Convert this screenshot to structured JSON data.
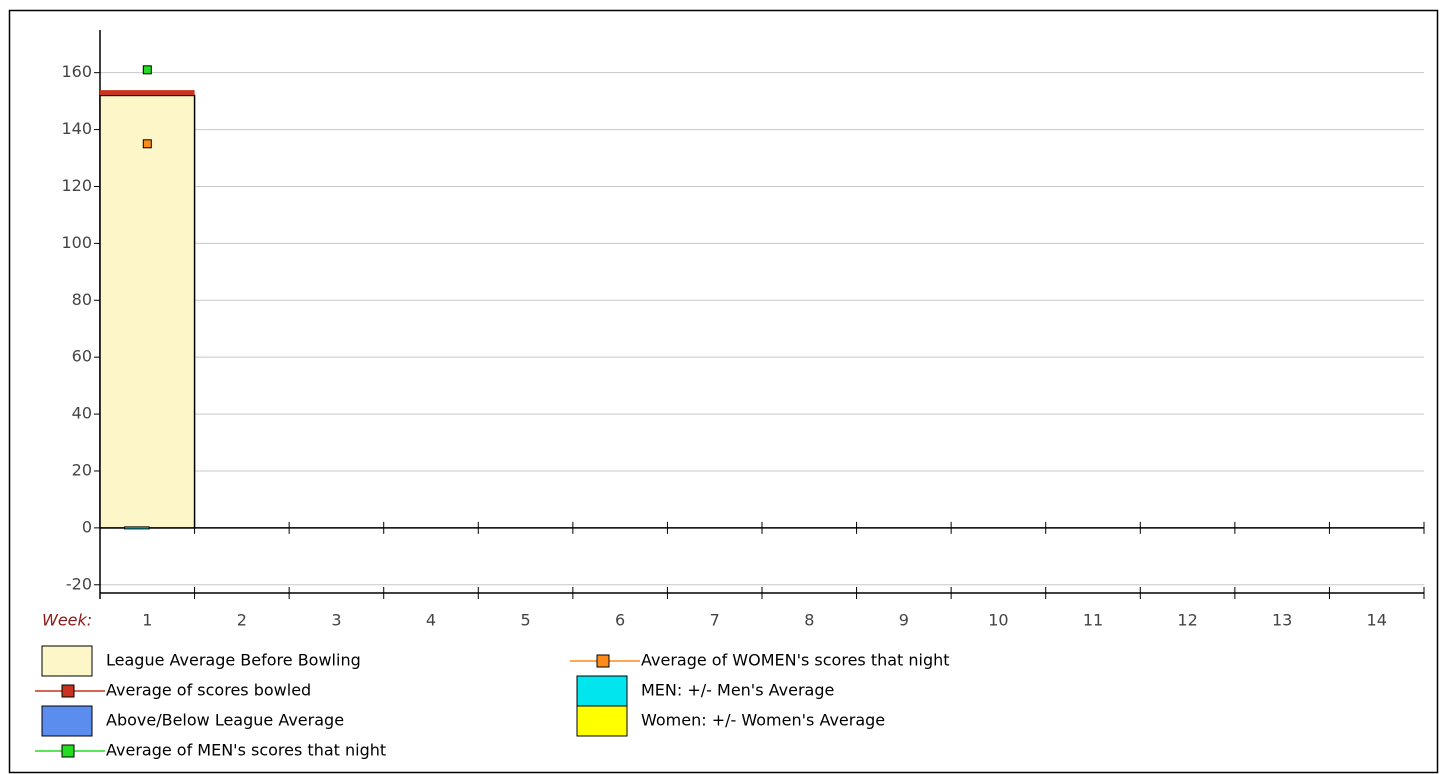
{
  "chart_data": {
    "type": "bar",
    "x_label": "Week:",
    "categories": [
      "1",
      "2",
      "3",
      "4",
      "5",
      "6",
      "7",
      "8",
      "9",
      "10",
      "11",
      "12",
      "13",
      "14"
    ],
    "ylim": [
      -25,
      175
    ],
    "yticks": [
      -20,
      0,
      20,
      40,
      60,
      80,
      100,
      120,
      140,
      160
    ],
    "grid": true,
    "series": [
      {
        "name": "League Average Before Bowling",
        "kind": "bar",
        "color": "#fdf6c8",
        "values": [
          152,
          null,
          null,
          null,
          null,
          null,
          null,
          null,
          null,
          null,
          null,
          null,
          null,
          null
        ]
      },
      {
        "name": "Average of scores bowled",
        "kind": "level",
        "color": "#c8321e",
        "values": [
          153,
          null,
          null,
          null,
          null,
          null,
          null,
          null,
          null,
          null,
          null,
          null,
          null,
          null
        ]
      },
      {
        "name": "Above/Below League Average",
        "kind": "bar",
        "color": "#5b8def",
        "values": [
          null,
          null,
          null,
          null,
          null,
          null,
          null,
          null,
          null,
          null,
          null,
          null,
          null,
          null
        ]
      },
      {
        "name": "Average of MEN's scores that night",
        "kind": "marker",
        "color": "#22dd22",
        "values": [
          161,
          null,
          null,
          null,
          null,
          null,
          null,
          null,
          null,
          null,
          null,
          null,
          null,
          null
        ]
      },
      {
        "name": "Average of WOMEN's scores that night",
        "kind": "marker",
        "color": "#ff8c1a",
        "values": [
          135,
          null,
          null,
          null,
          null,
          null,
          null,
          null,
          null,
          null,
          null,
          null,
          null,
          null
        ]
      },
      {
        "name": "MEN: +/- Men's Average",
        "kind": "bar",
        "color": "#00e5ee",
        "values": [
          0,
          null,
          null,
          null,
          null,
          null,
          null,
          null,
          null,
          null,
          null,
          null,
          null,
          null
        ]
      },
      {
        "name": "Women: +/- Women's Average",
        "kind": "bar",
        "color": "#ffff00",
        "values": [
          null,
          null,
          null,
          null,
          null,
          null,
          null,
          null,
          null,
          null,
          null,
          null,
          null,
          null
        ]
      }
    ]
  }
}
